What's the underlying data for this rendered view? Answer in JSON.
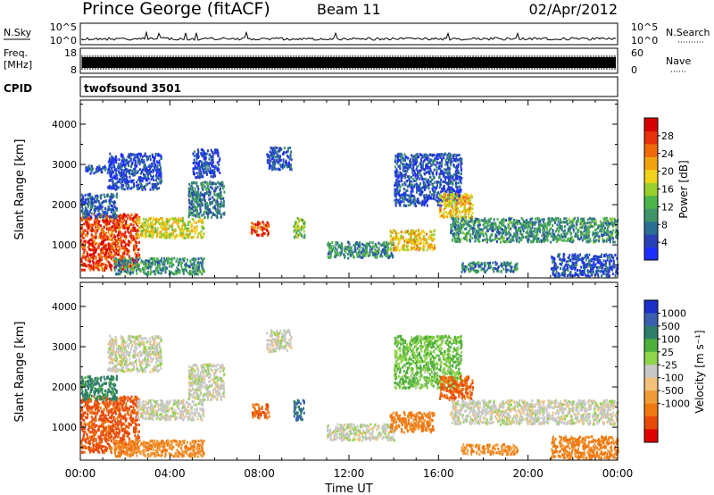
{
  "header": {
    "station": "Prince George (fitACF)",
    "beam": "Beam 11",
    "date": "02/Apr/2012"
  },
  "top_panels": {
    "nsky_label": "N.Sky",
    "nsearch_label": "N.Search",
    "noise_ticks_left": [
      "10^5",
      "10^0"
    ],
    "noise_ticks_right": [
      "10^5",
      "10^0"
    ],
    "freq_label_line1": "Freq.",
    "freq_label_line2": "[MHz]",
    "freq_ticks": [
      "18",
      "8"
    ],
    "nave_label": "Nave",
    "nave_ticks": [
      "60",
      "0"
    ],
    "cpid_label": "CPID",
    "cpid_value": "twofsound 3501"
  },
  "chart_data": [
    {
      "type": "heatmap",
      "name": "power",
      "xlabel": "Time UT",
      "ylabel": "Slant Range [km]",
      "xlim": [
        0,
        24
      ],
      "ylim": [
        180,
        4600
      ],
      "x_ticks": [
        "00:00",
        "04:00",
        "08:00",
        "12:00",
        "16:00",
        "20:00",
        "00:00"
      ],
      "y_ticks": [
        "1000",
        "2000",
        "3000",
        "4000"
      ],
      "colorbar": {
        "label": "Power [dB]",
        "range": [
          0,
          32
        ],
        "ticks": [
          "4",
          "8",
          "12",
          "16",
          "20",
          "24",
          "28"
        ],
        "colors": [
          "#1d2fff",
          "#2a40b8",
          "#2b6f93",
          "#3f9468",
          "#4db54a",
          "#9bcf2e",
          "#f0d21a",
          "#f2a40f",
          "#f06a0a",
          "#e8300c",
          "#d80000"
        ]
      },
      "regions": [
        {
          "t": [
            0.0,
            2.6
          ],
          "r": [
            400,
            1800
          ],
          "value": 27
        },
        {
          "t": [
            0.0,
            1.6
          ],
          "r": [
            1700,
            2300
          ],
          "value": 6
        },
        {
          "t": [
            0.2,
            1.2
          ],
          "r": [
            2800,
            3000
          ],
          "value": 5
        },
        {
          "t": [
            1.2,
            3.6
          ],
          "r": [
            2400,
            3300
          ],
          "value": 4
        },
        {
          "t": [
            2.5,
            5.5
          ],
          "r": [
            1200,
            1700
          ],
          "value": 18
        },
        {
          "t": [
            1.5,
            5.5
          ],
          "r": [
            300,
            700
          ],
          "value": 10
        },
        {
          "t": [
            4.8,
            6.4
          ],
          "r": [
            1700,
            2600
          ],
          "value": 8
        },
        {
          "t": [
            5.0,
            6.2
          ],
          "r": [
            2700,
            3400
          ],
          "value": 4
        },
        {
          "t": [
            7.6,
            8.4
          ],
          "r": [
            1250,
            1600
          ],
          "value": 26
        },
        {
          "t": [
            8.3,
            9.4
          ],
          "r": [
            2900,
            3450
          ],
          "value": 5
        },
        {
          "t": [
            9.5,
            10.0
          ],
          "r": [
            1200,
            1700
          ],
          "value": 14
        },
        {
          "t": [
            11.0,
            14.0
          ],
          "r": [
            700,
            1100
          ],
          "value": 10
        },
        {
          "t": [
            13.8,
            15.8
          ],
          "r": [
            900,
            1400
          ],
          "value": 20
        },
        {
          "t": [
            14.0,
            17.0
          ],
          "r": [
            2000,
            3300
          ],
          "value": 5
        },
        {
          "t": [
            16.0,
            17.5
          ],
          "r": [
            1700,
            2300
          ],
          "value": 20
        },
        {
          "t": [
            16.5,
            24.0
          ],
          "r": [
            1100,
            1700
          ],
          "value": 10
        },
        {
          "t": [
            17.0,
            19.5
          ],
          "r": [
            350,
            600
          ],
          "value": 9
        },
        {
          "t": [
            21.0,
            24.0
          ],
          "r": [
            250,
            800
          ],
          "value": 5
        }
      ]
    },
    {
      "type": "heatmap",
      "name": "velocity",
      "xlabel": "Time UT",
      "ylabel": "Slant Range [km]",
      "xlim": [
        0,
        24
      ],
      "ylim": [
        180,
        4600
      ],
      "x_ticks": [
        "00:00",
        "04:00",
        "08:00",
        "12:00",
        "16:00",
        "20:00",
        "00:00"
      ],
      "y_ticks": [
        "1000",
        "2000",
        "3000",
        "4000"
      ],
      "colorbar": {
        "label": "Velocity [m s⁻¹]",
        "ticks": [
          "1000",
          "500",
          "100",
          "25",
          "-25",
          "-100",
          "-500",
          "-1000"
        ],
        "colors": [
          "#1c2ec8",
          "#3a5fb0",
          "#2e7d6a",
          "#4caf3a",
          "#8fd44a",
          "#c8c8c8",
          "#f2c27a",
          "#f29b3a",
          "#f07810",
          "#e84a0a",
          "#e00000"
        ]
      },
      "regions": [
        {
          "t": [
            0.0,
            2.6
          ],
          "r": [
            400,
            1800
          ],
          "value": -400
        },
        {
          "t": [
            0.0,
            1.6
          ],
          "r": [
            1700,
            2300
          ],
          "value": 200
        },
        {
          "t": [
            1.2,
            3.6
          ],
          "r": [
            2400,
            3300
          ],
          "value": 0
        },
        {
          "t": [
            2.5,
            5.5
          ],
          "r": [
            1200,
            1700
          ],
          "value": 0
        },
        {
          "t": [
            1.5,
            5.5
          ],
          "r": [
            300,
            700
          ],
          "value": -150
        },
        {
          "t": [
            4.8,
            6.4
          ],
          "r": [
            1700,
            2600
          ],
          "value": 0
        },
        {
          "t": [
            7.6,
            8.4
          ],
          "r": [
            1250,
            1600
          ],
          "value": -300
        },
        {
          "t": [
            8.3,
            9.4
          ],
          "r": [
            2900,
            3450
          ],
          "value": 0
        },
        {
          "t": [
            9.5,
            10.0
          ],
          "r": [
            1200,
            1700
          ],
          "value": 300
        },
        {
          "t": [
            11.0,
            14.0
          ],
          "r": [
            700,
            1100
          ],
          "value": 0
        },
        {
          "t": [
            13.8,
            15.8
          ],
          "r": [
            900,
            1400
          ],
          "value": -200
        },
        {
          "t": [
            14.0,
            17.0
          ],
          "r": [
            2000,
            3300
          ],
          "value": 60
        },
        {
          "t": [
            16.0,
            17.5
          ],
          "r": [
            1700,
            2300
          ],
          "value": -300
        },
        {
          "t": [
            16.5,
            24.0
          ],
          "r": [
            1100,
            1700
          ],
          "value": 0
        },
        {
          "t": [
            17.0,
            19.5
          ],
          "r": [
            350,
            600
          ],
          "value": -150
        },
        {
          "t": [
            21.0,
            24.0
          ],
          "r": [
            250,
            800
          ],
          "value": -200
        }
      ]
    }
  ]
}
